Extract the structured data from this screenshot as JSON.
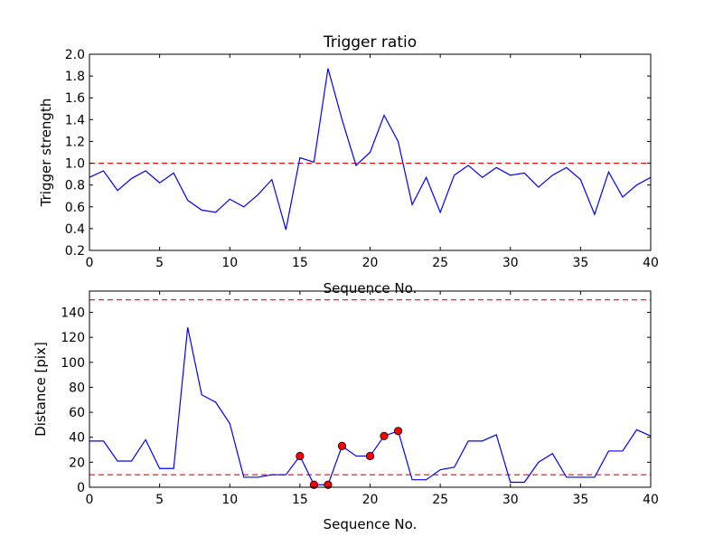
{
  "chart_data": [
    {
      "type": "line",
      "title": "Trigger ratio",
      "xlabel": "Sequence No.",
      "ylabel": "Trigger strength",
      "xlim": [
        0,
        40
      ],
      "ylim": [
        0.2,
        2.0
      ],
      "x_ticks": [
        0,
        5,
        10,
        15,
        20,
        25,
        30,
        35,
        40
      ],
      "y_ticks": [
        0.2,
        0.4,
        0.6,
        0.8,
        1.0,
        1.2,
        1.4,
        1.6,
        1.8,
        2.0
      ],
      "y_tick_labels": [
        "0.2",
        "0.4",
        "0.6",
        "0.8",
        "1.0",
        "1.2",
        "1.4",
        "1.6",
        "1.8",
        "2.0"
      ],
      "series": [
        {
          "name": "trigger strength",
          "color": "#0000ff",
          "x": [
            0,
            1,
            2,
            3,
            4,
            5,
            6,
            7,
            8,
            9,
            10,
            11,
            12,
            13,
            14,
            15,
            16,
            17,
            18,
            19,
            20,
            21,
            22,
            23,
            24,
            25,
            26,
            27,
            28,
            29,
            30,
            31,
            32,
            33,
            34,
            35,
            36,
            37,
            38,
            39,
            40
          ],
          "values": [
            0.87,
            0.93,
            0.75,
            0.86,
            0.93,
            0.82,
            0.91,
            0.66,
            0.57,
            0.55,
            0.67,
            0.6,
            0.71,
            0.85,
            0.39,
            1.05,
            1.01,
            1.87,
            1.4,
            0.98,
            1.1,
            1.44,
            1.2,
            0.62,
            0.87,
            0.55,
            0.89,
            0.98,
            0.87,
            0.96,
            0.89,
            0.91,
            0.78,
            0.89,
            0.96,
            0.85,
            0.53,
            0.92,
            0.69,
            0.8,
            0.87
          ]
        }
      ],
      "reference_lines": [
        {
          "y": 1.0,
          "color": "#ff0000",
          "style": "dashed"
        }
      ]
    },
    {
      "type": "line",
      "title": "",
      "xlabel": "Sequence No.",
      "ylabel": "Distance [pix]",
      "xlim": [
        0,
        40
      ],
      "ylim": [
        0,
        157
      ],
      "x_ticks": [
        0,
        5,
        10,
        15,
        20,
        25,
        30,
        35,
        40
      ],
      "y_ticks": [
        0,
        20,
        40,
        60,
        80,
        100,
        120,
        140
      ],
      "y_tick_labels": [
        "0",
        "20",
        "40",
        "60",
        "80",
        "100",
        "120",
        "140"
      ],
      "series": [
        {
          "name": "distance",
          "color": "#0000ff",
          "x": [
            0,
            1,
            2,
            3,
            4,
            5,
            6,
            7,
            8,
            9,
            10,
            11,
            12,
            13,
            14,
            15,
            16,
            17,
            18,
            19,
            20,
            21,
            22,
            23,
            24,
            25,
            26,
            27,
            28,
            29,
            30,
            31,
            32,
            33,
            34,
            35,
            36,
            37,
            38,
            39,
            40
          ],
          "values": [
            37,
            37,
            21,
            21,
            38,
            15,
            15,
            128,
            74,
            68,
            51,
            8,
            8,
            10,
            10,
            25,
            2,
            2,
            33,
            25,
            25,
            41,
            45,
            6,
            6,
            14,
            16,
            37,
            37,
            42,
            4,
            4,
            20,
            27,
            8,
            8,
            8,
            29,
            29,
            46,
            41
          ]
        }
      ],
      "markers": {
        "color": "#ff0000",
        "x": [
          15,
          16,
          17,
          18,
          20,
          21,
          22
        ],
        "values": [
          25,
          2,
          2,
          33,
          25,
          41,
          45
        ]
      },
      "reference_lines": [
        {
          "y": 150,
          "color": "#ff0000",
          "style": "dashed"
        },
        {
          "y": 10,
          "color": "#ff0000",
          "style": "dashed"
        }
      ]
    }
  ]
}
